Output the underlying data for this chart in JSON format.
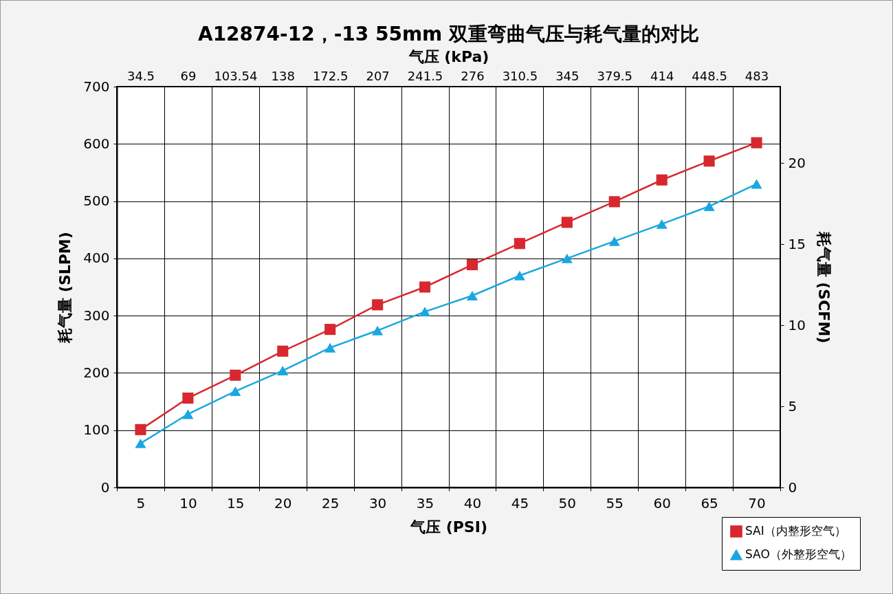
{
  "chart_data": {
    "type": "line",
    "title": "A12874-12，-13 55mm 双重弯曲气压与耗气量的对比",
    "xlabel": "气压 (PSI)",
    "ylabel": "耗气量 (SLPM)",
    "y2label": "耗气量 (SCFM)",
    "x2label": "气压 (kPa)",
    "x": [
      5,
      10,
      15,
      20,
      25,
      30,
      35,
      40,
      45,
      50,
      55,
      60,
      65,
      70
    ],
    "xlim": [
      2.5,
      72.5
    ],
    "xticks": [
      {
        "value": 2.5,
        "label": null
      },
      5,
      {
        "value": 7.5,
        "label": null
      },
      10,
      {
        "value": 12.5,
        "label": null
      },
      15,
      {
        "value": 17.5,
        "label": null
      },
      20,
      {
        "value": 22.5,
        "label": null
      },
      25,
      {
        "value": 27.5,
        "label": null
      },
      30,
      {
        "value": 32.5,
        "label": null
      },
      35,
      {
        "value": 37.5,
        "label": null
      },
      40,
      {
        "value": 42.5,
        "label": null
      },
      45,
      {
        "value": 47.5,
        "label": null
      },
      50,
      {
        "value": 52.5,
        "label": null
      },
      55,
      {
        "value": 57.5,
        "label": null
      },
      60,
      {
        "value": 62.5,
        "label": null
      },
      65,
      {
        "value": 67.5,
        "label": null
      },
      70,
      {
        "value": 72.5,
        "label": null
      }
    ],
    "x2lim": [
      17.25,
      500.25
    ],
    "x2ticks": [
      34.5,
      69,
      103.54,
      138,
      172.5,
      207,
      241.5,
      276,
      310.5,
      345,
      379.5,
      414,
      448.5,
      483
    ],
    "ylim": [
      0,
      700
    ],
    "yticks": [
      0,
      100,
      200,
      300,
      400,
      500,
      600,
      700
    ],
    "y2lim": [
      0,
      24.72
    ],
    "y2ticks": [
      0,
      5,
      10,
      15,
      20
    ],
    "grid": true,
    "legend": "bottom right",
    "series": [
      {
        "name": "SAI（内整形空气）",
        "color": "#d7282f",
        "marker": "square",
        "values": [
          101,
          156,
          196,
          238,
          276,
          319,
          350,
          389,
          426,
          463,
          499,
          537,
          570,
          602
        ]
      },
      {
        "name": "SAO（外整形空气）",
        "color": "#1aa7e0",
        "marker": "triangle",
        "values": [
          77,
          128,
          168,
          204,
          244,
          274,
          307,
          335,
          370,
          400,
          430,
          460,
          491,
          530
        ]
      }
    ]
  }
}
